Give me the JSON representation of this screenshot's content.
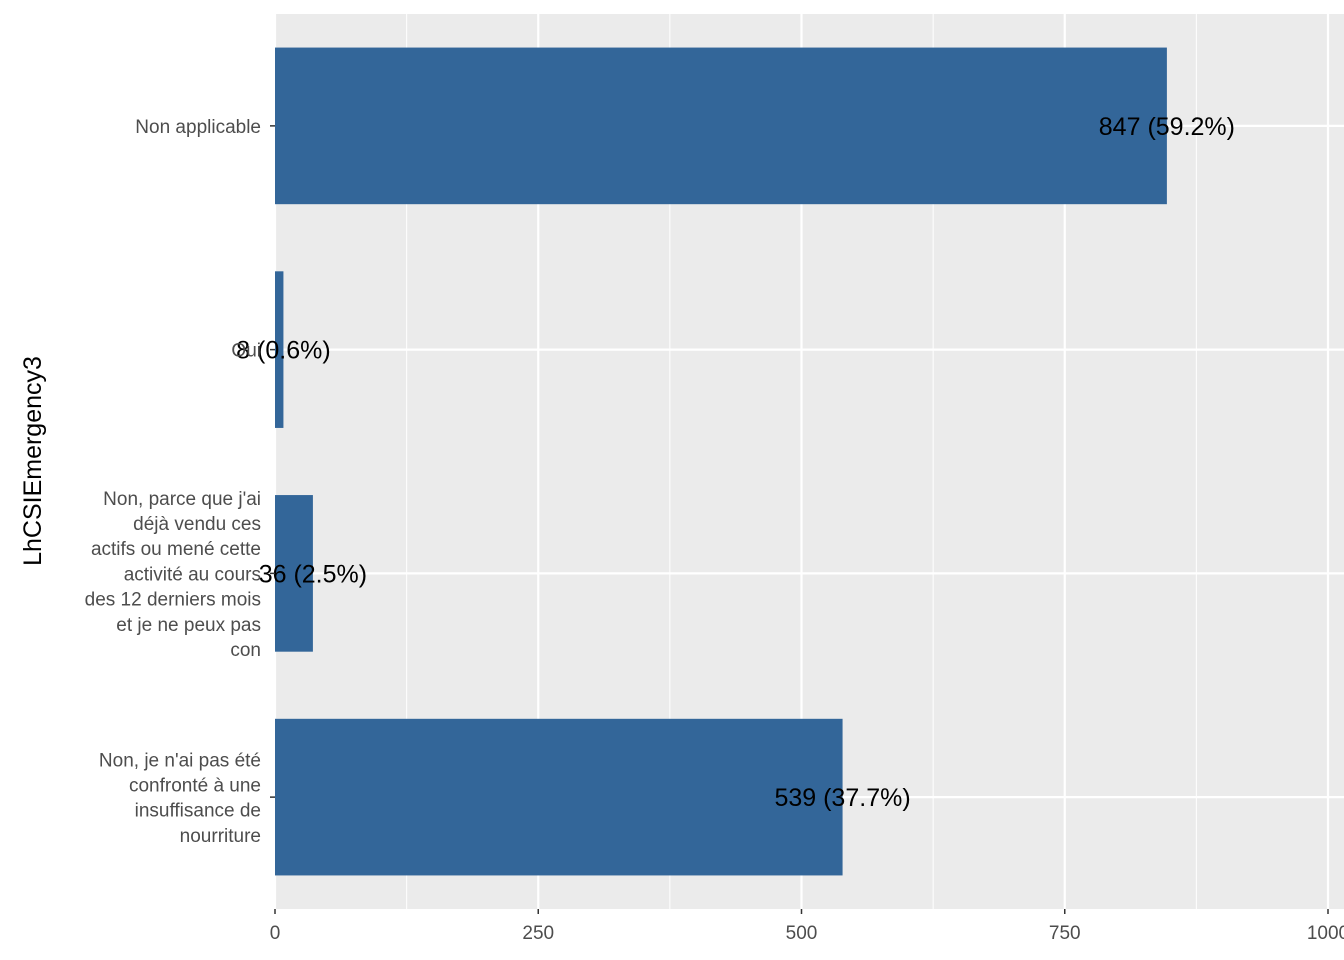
{
  "chart_data": {
    "type": "bar",
    "orientation": "horizontal",
    "ylabel": "LhCSIEmergency3",
    "xlabel": "",
    "xlim": [
      0,
      1000
    ],
    "x_ticks": [
      "0",
      "250",
      "500",
      "750",
      "1000"
    ],
    "categories": [
      {
        "label_lines": [
          "Non applicable"
        ],
        "value": 847,
        "label": "847 (59.2%)"
      },
      {
        "label_lines": [
          "Oui"
        ],
        "value": 8,
        "label": "8 (0.6%)"
      },
      {
        "label_lines": [
          "Non, parce que j'ai",
          "déjà vendu ces",
          "actifs ou mené cette",
          "activité au cours",
          "des 12 derniers mois",
          "et je ne peux pas",
          "con"
        ],
        "value": 36,
        "label": "36 (2.5%)"
      },
      {
        "label_lines": [
          "Non, je n'ai pas été",
          "confronté à une",
          "insuffisance de",
          "nourriture"
        ],
        "value": 539,
        "label": "539 (37.7%)"
      }
    ],
    "grid": true,
    "legend": "none",
    "colors": {
      "bar": "#336699",
      "panel": "#ebebeb",
      "grid": "#ffffff"
    }
  }
}
